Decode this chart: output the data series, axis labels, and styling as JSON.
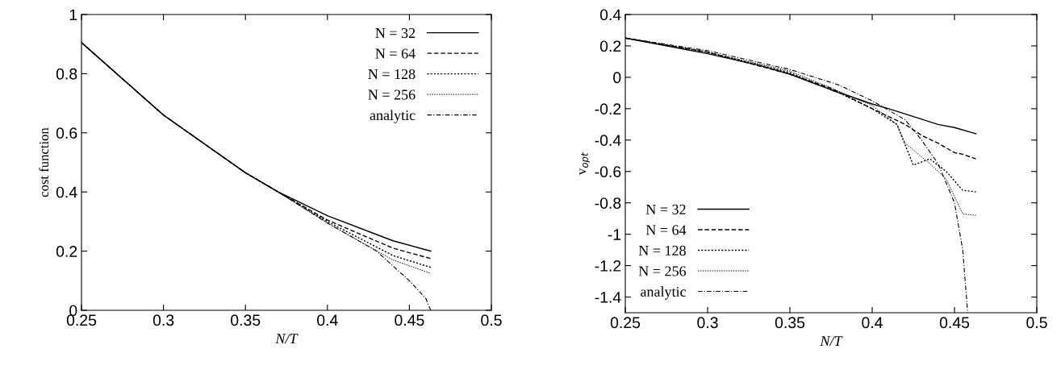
{
  "chart_data": [
    {
      "type": "line",
      "xlabel": "N/T",
      "ylabel": "cost function",
      "xlim": [
        0.25,
        0.5
      ],
      "ylim": [
        0,
        1
      ],
      "xticks": [
        0.25,
        0.3,
        0.35,
        0.4,
        0.45,
        0.5
      ],
      "yticks": [
        0,
        0.2,
        0.4,
        0.6,
        0.8,
        1
      ],
      "grid": false,
      "legend": "top right",
      "series": [
        {
          "name": "N = 32",
          "color": "#000000",
          "line_style": "solid",
          "x": [
            0.25,
            0.3,
            0.35,
            0.37,
            0.4,
            0.44,
            0.463
          ],
          "values": [
            0.905,
            0.66,
            0.465,
            0.4,
            0.32,
            0.235,
            0.2
          ]
        },
        {
          "name": "N = 64",
          "color": "#000000",
          "line_style": "dashed",
          "x": [
            0.25,
            0.3,
            0.35,
            0.37,
            0.4,
            0.44,
            0.463
          ],
          "values": [
            0.905,
            0.66,
            0.465,
            0.4,
            0.305,
            0.21,
            0.175
          ]
        },
        {
          "name": "N = 128",
          "color": "#000000",
          "line_style": "dotted",
          "x": [
            0.25,
            0.3,
            0.35,
            0.37,
            0.4,
            0.44,
            0.463
          ],
          "values": [
            0.905,
            0.66,
            0.465,
            0.4,
            0.3,
            0.185,
            0.145
          ]
        },
        {
          "name": "N = 256",
          "color": "#000000",
          "line_style": "dotted",
          "x": [
            0.25,
            0.3,
            0.35,
            0.37,
            0.4,
            0.44,
            0.463
          ],
          "values": [
            0.905,
            0.66,
            0.465,
            0.4,
            0.295,
            0.17,
            0.125
          ]
        },
        {
          "name": "analytic",
          "color": "#000000",
          "line_style": "dashdot",
          "x": [
            0.25,
            0.3,
            0.35,
            0.37,
            0.4,
            0.43,
            0.45,
            0.46,
            0.463
          ],
          "values": [
            0.905,
            0.66,
            0.465,
            0.4,
            0.295,
            0.2,
            0.1,
            0.04,
            0.0
          ]
        }
      ]
    },
    {
      "type": "line",
      "xlabel": "N/T",
      "ylabel": "v$_{opt}$",
      "xlim": [
        0.25,
        0.5
      ],
      "ylim": [
        -1.5,
        0.4
      ],
      "xticks": [
        0.25,
        0.3,
        0.35,
        0.4,
        0.45,
        0.5
      ],
      "yticks": [
        -1.4,
        -1.2,
        -1,
        -0.8,
        -0.6,
        -0.4,
        -0.2,
        0,
        0.2,
        0.4
      ],
      "grid": false,
      "legend": "bottom left",
      "series": [
        {
          "name": "N = 32",
          "color": "#000000",
          "line_style": "solid",
          "x": [
            0.25,
            0.3,
            0.33,
            0.35,
            0.375,
            0.4,
            0.41,
            0.425,
            0.44,
            0.45,
            0.463
          ],
          "values": [
            0.25,
            0.15,
            0.08,
            0.02,
            -0.08,
            -0.17,
            -0.2,
            -0.25,
            -0.3,
            -0.32,
            -0.36
          ]
        },
        {
          "name": "N = 64",
          "color": "#000000",
          "line_style": "dashed",
          "x": [
            0.25,
            0.3,
            0.35,
            0.375,
            0.4,
            0.42,
            0.43,
            0.44,
            0.45,
            0.455,
            0.463
          ],
          "values": [
            0.25,
            0.16,
            0.02,
            -0.07,
            -0.2,
            -0.3,
            -0.37,
            -0.42,
            -0.48,
            -0.49,
            -0.52
          ]
        },
        {
          "name": "N = 128",
          "color": "#000000",
          "line_style": "dotted",
          "x": [
            0.25,
            0.3,
            0.35,
            0.38,
            0.4,
            0.415,
            0.425,
            0.435,
            0.445,
            0.455,
            0.463
          ],
          "values": [
            0.25,
            0.16,
            0.03,
            -0.1,
            -0.2,
            -0.3,
            -0.56,
            -0.52,
            -0.6,
            -0.72,
            -0.73
          ]
        },
        {
          "name": "N = 256",
          "color": "#000000",
          "line_style": "dotted",
          "x": [
            0.25,
            0.3,
            0.35,
            0.38,
            0.4,
            0.415,
            0.42,
            0.435,
            0.445,
            0.455,
            0.463
          ],
          "values": [
            0.25,
            0.16,
            0.04,
            -0.09,
            -0.18,
            -0.3,
            -0.42,
            -0.55,
            -0.65,
            -0.87,
            -0.88
          ]
        },
        {
          "name": "analytic",
          "color": "#000000",
          "line_style": "dashdot",
          "x": [
            0.25,
            0.3,
            0.35,
            0.38,
            0.4,
            0.42,
            0.43,
            0.44,
            0.45,
            0.455,
            0.458
          ],
          "values": [
            0.25,
            0.17,
            0.05,
            -0.05,
            -0.15,
            -0.27,
            -0.4,
            -0.55,
            -0.8,
            -1.1,
            -1.5
          ]
        }
      ]
    }
  ]
}
